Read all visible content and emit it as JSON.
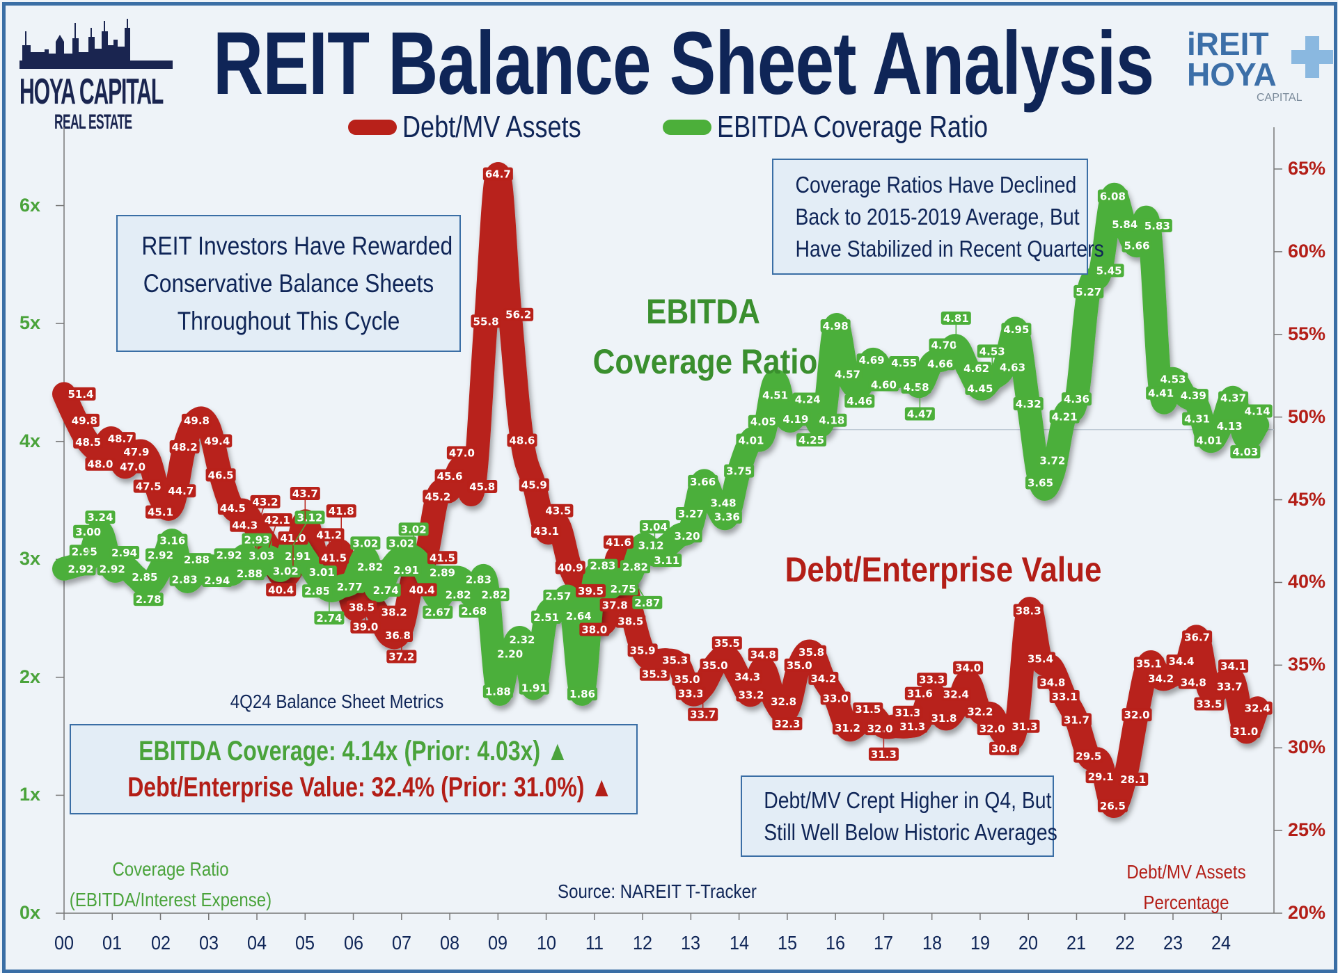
{
  "header": {
    "title": "REIT Balance Sheet Analysis",
    "logo_left": {
      "line1": "HOYA CAPITAL",
      "line2": "REAL ESTATE"
    },
    "logo_right": {
      "line1": "iREIT",
      "line2": "HOYA",
      "line3": "CAPITAL"
    }
  },
  "legend": [
    {
      "label": "Debt/MV Assets",
      "color": "#b8211a"
    },
    {
      "label": "EBITDA Coverage Ratio",
      "color": "#4caf3a"
    }
  ],
  "annotations": {
    "left_box": [
      "REIT Investors Have Rewarded",
      "Conservative Balance Sheets",
      "Throughout This Cycle"
    ],
    "top_right_box": [
      "Coverage Ratios Have Declined",
      "Back to 2015-2019 Average, But",
      "Have Stabilized in Recent Quarters"
    ],
    "bottom_right_box": [
      "Debt/MV Crept Higher in Q4, But",
      "Still Well Below Historic Averages"
    ],
    "ebitda_label": [
      "EBITDA",
      "Coverage Ratio"
    ],
    "debt_label": "Debt/Enterprise Value",
    "metrics_title": "4Q24 Balance Sheet Metrics",
    "metrics_line1": "EBITDA Coverage: 4.14x (Prior: 4.03x) ▲",
    "metrics_line2": "Debt/Enterprise Value: 32.4% (Prior: 31.0%) ▲",
    "left_axis_note": [
      "Coverage Ratio",
      "(EBITDA/Interest Expense)"
    ],
    "right_axis_note": [
      "Debt/MV Assets",
      "Percentage"
    ],
    "source": "Source: NAREIT T-Tracker"
  },
  "colors": {
    "debt": "#b8211a",
    "coverage": "#4caf3a",
    "navy": "#0f2557",
    "frame": "#3a6ea5"
  },
  "chart_data": {
    "type": "line",
    "title": "REIT Balance Sheet Analysis",
    "x_ticks": [
      "00",
      "01",
      "02",
      "03",
      "04",
      "05",
      "06",
      "07",
      "08",
      "09",
      "10",
      "11",
      "12",
      "13",
      "14",
      "15",
      "16",
      "17",
      "18",
      "19",
      "20",
      "21",
      "22",
      "23",
      "24"
    ],
    "x_range": [
      "2000 Q1",
      "2024 Q4"
    ],
    "frequency": "quarterly",
    "y_left": {
      "ticks": [
        "0x",
        "1x",
        "2x",
        "3x",
        "4x",
        "5x",
        "6x"
      ],
      "range": [
        0,
        6.31
      ],
      "label": "Coverage Ratio (EBITDA/Interest Expense)"
    },
    "y_right": {
      "ticks": [
        "20%",
        "25%",
        "30%",
        "35%",
        "40%",
        "45%",
        "50%",
        "55%",
        "60%",
        "65%"
      ],
      "range": [
        20,
        65
      ],
      "label": "Debt/MV Assets Percentage"
    },
    "reference_line": {
      "axis": "left",
      "value": 4.1,
      "from": "2015"
    },
    "grid": false,
    "legend_position": "top",
    "series": [
      {
        "name": "Debt/MV Assets",
        "axis": "right",
        "color": "#b8211a",
        "values": [
          51.4,
          49.8,
          48.5,
          48.0,
          48.7,
          47.0,
          47.9,
          47.5,
          45.1,
          44.7,
          48.2,
          49.8,
          49.4,
          46.5,
          44.5,
          44.3,
          43.2,
          42.1,
          40.4,
          41.0,
          43.7,
          41.5,
          41.2,
          41.8,
          38.5,
          39.0,
          38.2,
          36.8,
          37.2,
          40.4,
          41.5,
          45.2,
          45.6,
          47.0,
          45.8,
          55.8,
          64.7,
          56.2,
          48.6,
          45.9,
          43.1,
          43.5,
          40.9,
          39.5,
          38.0,
          37.8,
          41.6,
          38.5,
          35.9,
          35.3,
          35.3,
          35.0,
          33.3,
          33.7,
          35.0,
          35.5,
          34.3,
          33.2,
          34.8,
          32.8,
          32.3,
          35.0,
          35.8,
          34.2,
          33.0,
          31.2,
          31.5,
          32.0,
          31.3,
          31.3,
          31.3,
          31.6,
          33.3,
          31.8,
          32.4,
          34.0,
          32.2,
          32.0,
          30.8,
          31.3,
          38.3,
          35.4,
          34.8,
          33.1,
          31.7,
          29.5,
          29.1,
          26.5,
          28.1,
          32.0,
          35.1,
          34.2,
          34.4,
          34.8,
          36.7,
          33.5,
          33.7,
          34.1,
          31.0,
          32.4
        ]
      },
      {
        "name": "EBITDA Coverage Ratio",
        "axis": "left",
        "color": "#4caf3a",
        "values": [
          2.92,
          2.95,
          3.0,
          3.24,
          2.92,
          2.94,
          2.85,
          2.78,
          2.92,
          3.16,
          2.83,
          2.88,
          2.94,
          2.92,
          2.88,
          3.03,
          2.93,
          3.02,
          2.91,
          3.12,
          3.01,
          2.85,
          2.74,
          2.77,
          2.82,
          3.02,
          2.74,
          2.91,
          3.02,
          3.02,
          2.89,
          2.67,
          2.82,
          2.83,
          2.68,
          2.82,
          1.88,
          2.2,
          2.32,
          1.91,
          2.51,
          2.57,
          2.64,
          1.86,
          2.83,
          2.75,
          2.82,
          2.87,
          3.12,
          3.04,
          3.11,
          3.2,
          3.27,
          3.66,
          3.48,
          3.36,
          3.75,
          4.01,
          4.05,
          4.51,
          4.19,
          4.24,
          4.25,
          4.18,
          4.98,
          4.57,
          4.46,
          4.69,
          4.6,
          4.55,
          4.58,
          4.47,
          4.66,
          4.7,
          4.81,
          4.62,
          4.45,
          4.53,
          4.63,
          4.95,
          4.32,
          3.65,
          3.72,
          4.21,
          4.36,
          5.27,
          5.45,
          6.08,
          5.84,
          5.66,
          5.83,
          4.41,
          4.53,
          4.39,
          4.31,
          4.01,
          4.13,
          4.37,
          4.03,
          4.14
        ]
      }
    ]
  }
}
